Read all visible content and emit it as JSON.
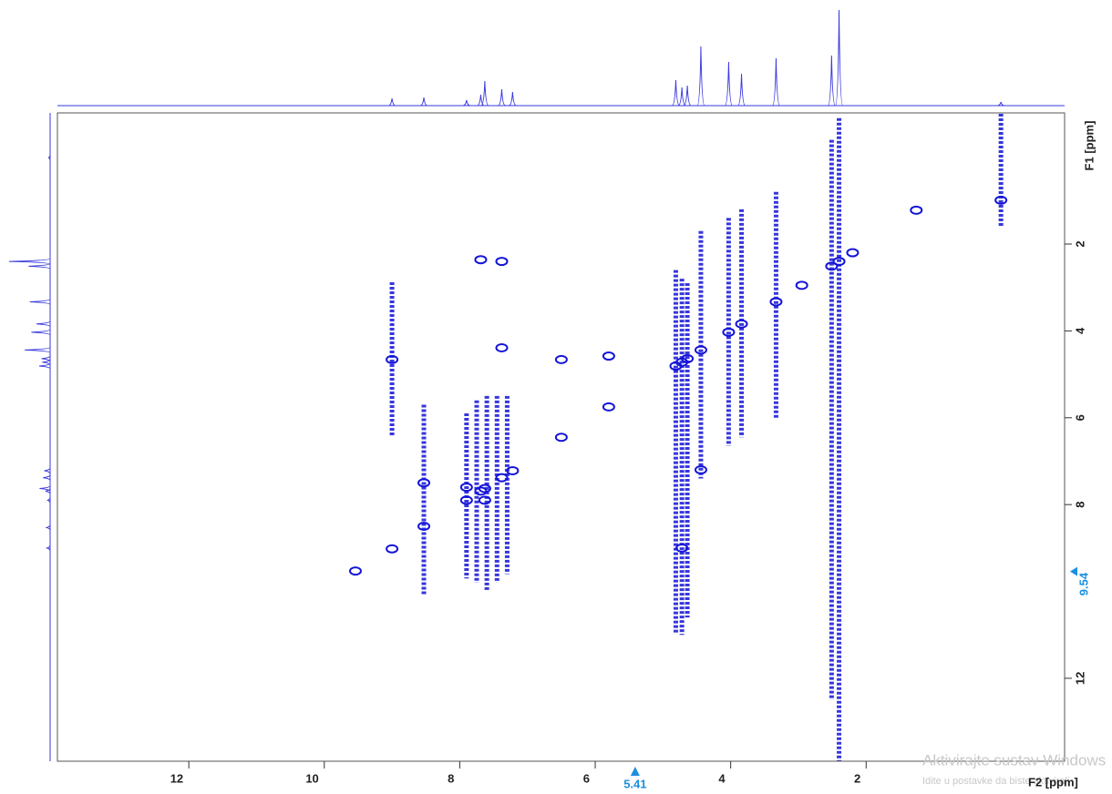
{
  "chart_data": {
    "type": "nmr2d",
    "x_label": "F2 [ppm]",
    "y_label": "F1 [ppm]",
    "xlim": [
      13.94,
      -0.93
    ],
    "ylim": [
      -1.02,
      13.91
    ],
    "xticks": [
      12,
      10,
      8,
      6,
      4,
      2
    ],
    "yticks": [
      2,
      4,
      6,
      8,
      12
    ],
    "color": "#1414d8",
    "projection_color": "#3a3ae0",
    "projection": {
      "x": [
        9.0,
        8.53,
        7.9,
        7.69,
        7.63,
        7.38,
        7.22,
        4.81,
        4.72,
        4.64,
        4.44,
        4.03,
        3.84,
        3.33,
        2.51,
        2.4,
        0.01
      ],
      "heights": [
        8,
        9,
        6,
        12,
        27,
        18,
        15,
        28,
        20,
        22,
        65,
        48,
        35,
        52,
        55,
        105,
        4
      ]
    },
    "peaks": {
      "x": [
        9.54,
        9.0,
        8.53,
        7.9,
        7.69,
        7.63,
        7.38,
        7.22,
        5.8,
        4.81,
        4.72,
        4.64,
        4.44,
        4.03,
        3.84,
        3.33,
        2.95,
        2.51,
        2.4,
        2.2,
        1.26,
        9.0,
        8.53,
        7.69,
        7.38,
        7.38,
        6.5,
        6.5,
        5.8,
        4.72,
        4.44,
        0.01,
        7.9,
        7.63
      ],
      "y": [
        9.53,
        9.02,
        8.5,
        7.9,
        7.69,
        7.63,
        7.38,
        7.22,
        5.75,
        4.81,
        4.72,
        4.64,
        4.44,
        4.03,
        3.84,
        3.33,
        2.95,
        2.51,
        2.4,
        2.2,
        1.22,
        4.66,
        7.5,
        2.36,
        2.4,
        4.39,
        4.66,
        6.45,
        4.58,
        9.0,
        7.2,
        0.99,
        7.6,
        7.9
      ]
    },
    "streaks": {
      "x": [
        9.0,
        8.53,
        7.9,
        7.75,
        7.6,
        7.45,
        7.3,
        4.81,
        4.72,
        4.64,
        4.44,
        4.03,
        3.84,
        3.33,
        2.51,
        2.4,
        0.01
      ],
      "y_start": [
        2.88,
        5.7,
        5.9,
        5.6,
        5.5,
        5.5,
        5.5,
        2.6,
        2.8,
        2.9,
        1.7,
        1.4,
        1.2,
        0.8,
        -0.4,
        -0.9,
        -1.0
      ],
      "y_end": [
        6.44,
        10.1,
        9.7,
        9.8,
        10.0,
        9.8,
        9.6,
        10.95,
        11.0,
        10.6,
        7.4,
        6.65,
        6.45,
        6.0,
        12.5,
        13.9,
        1.6
      ]
    },
    "x_cursor": 5.41,
    "y_cursor": 9.54,
    "watermark": [
      "Aktivirajte sustav Windows",
      "Idite u postavke da biste aktivirali"
    ]
  }
}
